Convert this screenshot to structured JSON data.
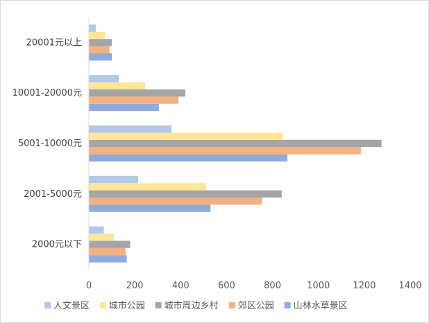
{
  "chart_data": {
    "type": "bar",
    "orientation": "horizontal",
    "categories": [
      "2000元以下",
      "2001-5000元",
      "5001-10000元",
      "10001-20000元",
      "20001元以上"
    ],
    "series": [
      {
        "name": "山林水草景区",
        "color": "#8faadc",
        "values": [
          165,
          530,
          865,
          305,
          100
        ]
      },
      {
        "name": "郊区公园",
        "color": "#f4b183",
        "values": [
          160,
          755,
          1185,
          390,
          90
        ]
      },
      {
        "name": "城市周边乡村",
        "color": "#a5a5a5",
        "values": [
          180,
          840,
          1275,
          420,
          100
        ]
      },
      {
        "name": "城市公园",
        "color": "#ffe699",
        "values": [
          110,
          510,
          845,
          245,
          70
        ]
      },
      {
        "name": "人文景区",
        "color": "#b4c7e7",
        "values": [
          65,
          215,
          360,
          130,
          30
        ]
      }
    ],
    "xlim": [
      0,
      1400
    ],
    "xticks": [
      0,
      200,
      400,
      600,
      800,
      1000,
      1200,
      1400
    ],
    "legend_order": [
      "人文景区",
      "城市公园",
      "城市周边乡村",
      "郊区公园",
      "山林水草景区"
    ],
    "legend_position": "bottom",
    "grid": false
  }
}
